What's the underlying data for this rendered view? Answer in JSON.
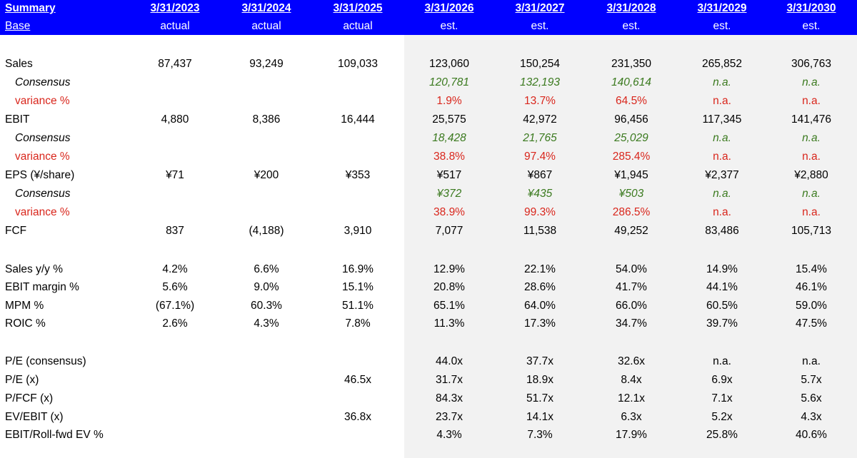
{
  "header": {
    "row1_label": "Summary",
    "row2_label": "Base",
    "dates": [
      "3/31/2023",
      "3/31/2024",
      "3/31/2025",
      "3/31/2026",
      "3/31/2027",
      "3/31/2028",
      "3/31/2029",
      "3/31/2030"
    ],
    "types": [
      "actual",
      "actual",
      "actual",
      "est.",
      "est.",
      "est.",
      "est.",
      "est."
    ]
  },
  "rows": [
    {
      "label": "Sales",
      "values": [
        "87,437",
        "93,249",
        "109,033",
        "123,060",
        "150,254",
        "231,350",
        "265,852",
        "306,763"
      ]
    },
    {
      "label": "Consensus",
      "values": [
        "",
        "",
        "",
        "120,781",
        "132,193",
        "140,614",
        "n.a.",
        "n.a."
      ]
    },
    {
      "label": "variance %",
      "values": [
        "",
        "",
        "",
        "1.9%",
        "13.7%",
        "64.5%",
        "n.a.",
        "n.a."
      ]
    },
    {
      "label": "EBIT",
      "values": [
        "4,880",
        "8,386",
        "16,444",
        "25,575",
        "42,972",
        "96,456",
        "117,345",
        "141,476"
      ]
    },
    {
      "label": "Consensus",
      "values": [
        "",
        "",
        "",
        "18,428",
        "21,765",
        "25,029",
        "n.a.",
        "n.a."
      ]
    },
    {
      "label": "variance %",
      "values": [
        "",
        "",
        "",
        "38.8%",
        "97.4%",
        "285.4%",
        "n.a.",
        "n.a."
      ]
    },
    {
      "label": "EPS (¥/share)",
      "values": [
        "¥71",
        "¥200",
        "¥353",
        "¥517",
        "¥867",
        "¥1,945",
        "¥2,377",
        "¥2,880"
      ]
    },
    {
      "label": "Consensus",
      "values": [
        "",
        "",
        "",
        "¥372",
        "¥435",
        "¥503",
        "n.a.",
        "n.a."
      ]
    },
    {
      "label": "variance %",
      "values": [
        "",
        "",
        "",
        "38.9%",
        "99.3%",
        "286.5%",
        "n.a.",
        "n.a."
      ]
    },
    {
      "label": "FCF",
      "values": [
        "837",
        "(4,188)",
        "3,910",
        "7,077",
        "11,538",
        "49,252",
        "83,486",
        "105,713"
      ]
    },
    {
      "label": "Sales y/y %",
      "values": [
        "4.2%",
        "6.6%",
        "16.9%",
        "12.9%",
        "22.1%",
        "54.0%",
        "14.9%",
        "15.4%"
      ]
    },
    {
      "label": "EBIT margin %",
      "values": [
        "5.6%",
        "9.0%",
        "15.1%",
        "20.8%",
        "28.6%",
        "41.7%",
        "44.1%",
        "46.1%"
      ]
    },
    {
      "label": "MPM %",
      "values": [
        "(67.1%)",
        "60.3%",
        "51.1%",
        "65.1%",
        "64.0%",
        "66.0%",
        "60.5%",
        "59.0%"
      ]
    },
    {
      "label": "ROIC %",
      "values": [
        "2.6%",
        "4.3%",
        "7.8%",
        "11.3%",
        "17.3%",
        "34.7%",
        "39.7%",
        "47.5%"
      ]
    },
    {
      "label": "P/E (consensus)",
      "values": [
        "",
        "",
        "",
        "44.0x",
        "37.7x",
        "32.6x",
        "n.a.",
        "n.a."
      ]
    },
    {
      "label": "P/E (x)",
      "values": [
        "",
        "",
        "46.5x",
        "31.7x",
        "18.9x",
        "8.4x",
        "6.9x",
        "5.7x"
      ]
    },
    {
      "label": "P/FCF (x)",
      "values": [
        "",
        "",
        "",
        "84.3x",
        "51.7x",
        "12.1x",
        "7.1x",
        "5.6x"
      ]
    },
    {
      "label": "EV/EBIT (x)",
      "values": [
        "",
        "",
        "36.8x",
        "23.7x",
        "14.1x",
        "6.3x",
        "5.2x",
        "4.3x"
      ]
    },
    {
      "label": "EBIT/Roll-fwd EV %",
      "values": [
        "",
        "",
        "",
        "4.3%",
        "7.3%",
        "17.9%",
        "25.8%",
        "40.6%"
      ]
    }
  ],
  "colors": {
    "header_bg": "#0000ff",
    "header_text": "#ffffff",
    "consensus": "#3b7a1f",
    "variance": "#d9261c",
    "estimate_bg": "#f2f2f2"
  }
}
